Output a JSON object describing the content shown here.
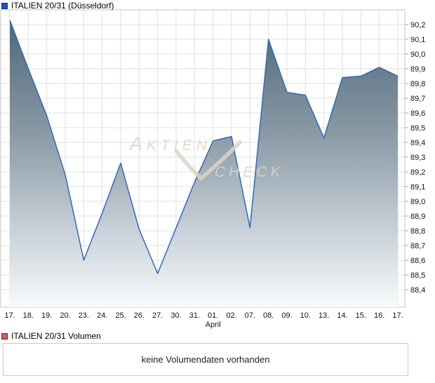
{
  "header": {
    "title": "ITALIEN 20/31 (Düsseldorf)"
  },
  "chart_data": {
    "type": "area",
    "title": "ITALIEN 20/31 (Düsseldorf)",
    "categories": [
      "17.",
      "18.",
      "19.",
      "20.",
      "23.",
      "24.",
      "25.",
      "26.",
      "27.",
      "30.",
      "31.",
      "01.",
      "02.",
      "07.",
      "08.",
      "09.",
      "10.",
      "13.",
      "14.",
      "15.",
      "16.",
      "17."
    ],
    "values": [
      90.23,
      89.9,
      89.58,
      89.18,
      88.6,
      88.92,
      89.26,
      88.81,
      88.51,
      88.82,
      89.13,
      89.41,
      89.44,
      88.82,
      90.1,
      89.74,
      89.72,
      89.43,
      89.84,
      89.85,
      89.91,
      89.85
    ],
    "month_label": {
      "under_category_index": 11,
      "label": "April"
    },
    "y_ticks": [
      "90,2",
      "90,1",
      "90,0",
      "89,9",
      "89,8",
      "89,7",
      "89,6",
      "89,5",
      "89,4",
      "89,3",
      "89,2",
      "89,1",
      "89,0",
      "88,9",
      "88,8",
      "88,7",
      "88,6",
      "88,5",
      "88,4"
    ],
    "ylim": [
      88.4,
      90.2
    ],
    "grid": true,
    "legend_position": "top-left",
    "colors": {
      "line": "#336bb0",
      "fill_top": "#4a6374",
      "fill_mid": "#8a9aa7",
      "fill_low": "#c9d2d9",
      "fill_bottom": "#f8fafb",
      "grid": "#e0e0e0",
      "axis": "#c6c6c6",
      "tick_text": "#111111"
    }
  },
  "watermark": {
    "word1": "Aktien",
    "word2": "check"
  },
  "volume": {
    "label": "ITALIEN 20/31 Volumen",
    "message": "keine Volumendaten vorhanden"
  }
}
